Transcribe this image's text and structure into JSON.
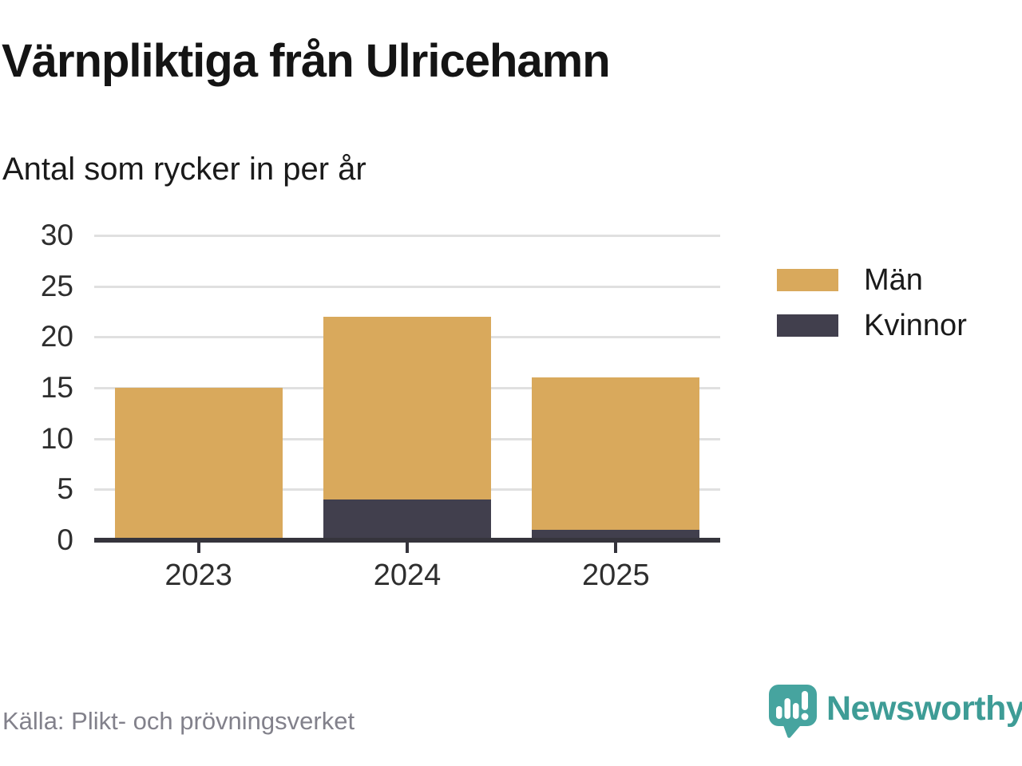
{
  "header": {
    "title": "Värnpliktiga från Ulricehamn",
    "subtitle": "Antal som rycker in per år"
  },
  "chart_data": {
    "type": "bar",
    "stacked": true,
    "title": "Värnpliktiga från Ulricehamn",
    "subtitle": "Antal som rycker in per år",
    "categories": [
      "2023",
      "2024",
      "2025"
    ],
    "series": [
      {
        "name": "Män",
        "color": "#d9a95c",
        "values": [
          15,
          18,
          15
        ]
      },
      {
        "name": "Kvinnor",
        "color": "#413f4d",
        "values": [
          0,
          4,
          1
        ]
      }
    ],
    "stack_totals": [
      15,
      22,
      16
    ],
    "xlabel": "",
    "ylabel": "",
    "ylim": [
      0,
      30
    ],
    "y_ticks": [
      0,
      5,
      10,
      15,
      20,
      25,
      30
    ],
    "grid": "horizontal",
    "legend_position": "right",
    "axis_color": "#35343c",
    "gridline_color": "#e0e0e0"
  },
  "footer": {
    "source": "Källa: Plikt- och prövningsverket",
    "brand": "Newsworthy",
    "brand_color": "#3e9c96",
    "logo_color": "#46a49f"
  }
}
